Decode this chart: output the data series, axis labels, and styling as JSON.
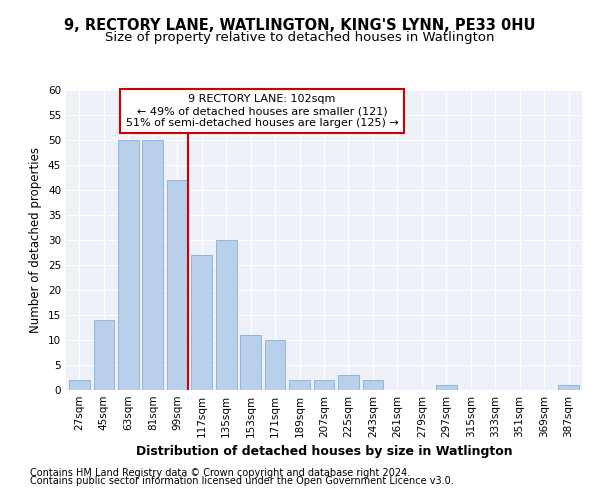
{
  "title1": "9, RECTORY LANE, WATLINGTON, KING'S LYNN, PE33 0HU",
  "title2": "Size of property relative to detached houses in Watlington",
  "xlabel": "Distribution of detached houses by size in Watlington",
  "ylabel": "Number of detached properties",
  "categories": [
    "27sqm",
    "45sqm",
    "63sqm",
    "81sqm",
    "99sqm",
    "117sqm",
    "135sqm",
    "153sqm",
    "171sqm",
    "189sqm",
    "207sqm",
    "225sqm",
    "243sqm",
    "261sqm",
    "279sqm",
    "297sqm",
    "315sqm",
    "333sqm",
    "351sqm",
    "369sqm",
    "387sqm"
  ],
  "values": [
    2,
    14,
    50,
    50,
    42,
    27,
    30,
    11,
    10,
    2,
    2,
    3,
    2,
    0,
    0,
    1,
    0,
    0,
    0,
    0,
    1
  ],
  "bar_color": "#b8d0ea",
  "bar_edge_color": "#8ab0d0",
  "property_line_label": "9 RECTORY LANE: 102sqm",
  "annotation_line1": "← 49% of detached houses are smaller (121)",
  "annotation_line2": "51% of semi-detached houses are larger (125) →",
  "annotation_box_color": "#ffffff",
  "annotation_box_edge": "#cc0000",
  "vline_color": "#cc0000",
  "ylim": [
    0,
    60
  ],
  "yticks": [
    0,
    5,
    10,
    15,
    20,
    25,
    30,
    35,
    40,
    45,
    50,
    55,
    60
  ],
  "footnote1": "Contains HM Land Registry data © Crown copyright and database right 2024.",
  "footnote2": "Contains public sector information licensed under the Open Government Licence v3.0.",
  "bg_color": "#eef2f8",
  "grid_color": "#ffffff",
  "title1_fontsize": 10.5,
  "title2_fontsize": 9.5,
  "xlabel_fontsize": 9,
  "ylabel_fontsize": 8.5,
  "tick_fontsize": 7.5,
  "annot_fontsize": 8,
  "footnote_fontsize": 7
}
